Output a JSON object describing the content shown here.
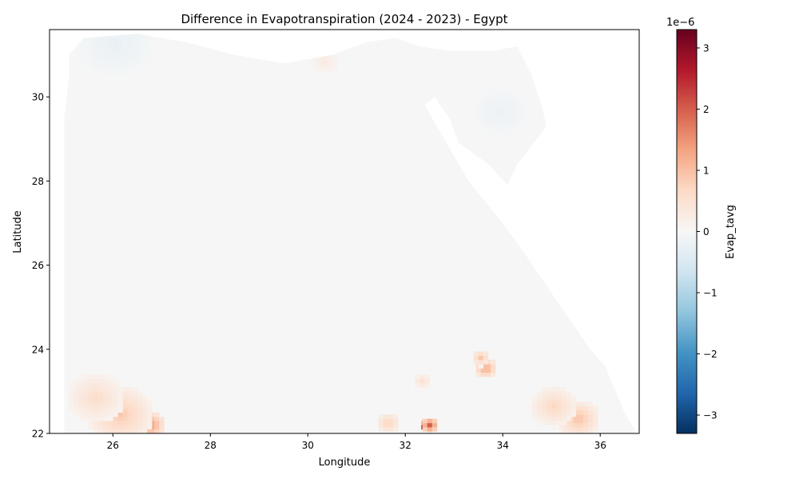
{
  "chart_data": {
    "type": "heatmap",
    "title": "Difference in Evapotranspiration (2024 - 2023) - Egypt",
    "xlabel": "Longitude",
    "ylabel": "Latitude",
    "xlim": [
      24.7,
      36.8
    ],
    "ylim": [
      22.0,
      31.6
    ],
    "x_ticks": [
      26,
      28,
      30,
      32,
      34,
      36
    ],
    "y_ticks": [
      22,
      24,
      26,
      28,
      30
    ],
    "colorbar": {
      "label": "Evap_tavg",
      "multiplier": "1e−6",
      "range": [
        -3.3e-06,
        3.3e-06
      ],
      "ticks": [
        -3,
        -2,
        -1,
        0,
        1,
        2,
        3
      ],
      "tick_labels": [
        "−3",
        "−2",
        "−1",
        "0",
        "1",
        "2",
        "3"
      ],
      "colormap": "RdBu_r",
      "stops": [
        "#053061",
        "#2166ac",
        "#4393c3",
        "#92c5de",
        "#d1e5f0",
        "#f7f7f7",
        "#fddbc7",
        "#f4a582",
        "#d6604d",
        "#b2182b",
        "#67001f"
      ]
    },
    "region_outline_lonlat": [
      [
        25.0,
        22.0
      ],
      [
        25.0,
        29.5
      ],
      [
        25.1,
        30.5
      ],
      [
        25.1,
        31.0
      ],
      [
        25.4,
        31.4
      ],
      [
        26.5,
        31.5
      ],
      [
        27.5,
        31.3
      ],
      [
        28.5,
        31.0
      ],
      [
        29.5,
        30.8
      ],
      [
        30.5,
        31.0
      ],
      [
        31.2,
        31.3
      ],
      [
        31.8,
        31.4
      ],
      [
        32.3,
        31.2
      ],
      [
        32.9,
        31.1
      ],
      [
        33.8,
        31.1
      ],
      [
        34.3,
        31.2
      ],
      [
        34.6,
        30.5
      ],
      [
        34.8,
        29.8
      ],
      [
        34.9,
        29.3
      ],
      [
        34.7,
        29.0
      ],
      [
        34.3,
        28.4
      ],
      [
        34.1,
        27.9
      ],
      [
        33.7,
        28.4
      ],
      [
        33.1,
        28.9
      ],
      [
        32.9,
        29.5
      ],
      [
        32.6,
        30.0
      ],
      [
        32.4,
        29.8
      ],
      [
        32.6,
        29.4
      ],
      [
        32.9,
        28.8
      ],
      [
        33.3,
        28.0
      ],
      [
        34.0,
        27.0
      ],
      [
        34.5,
        26.2
      ],
      [
        35.2,
        25.0
      ],
      [
        35.8,
        24.0
      ],
      [
        36.1,
        23.6
      ],
      [
        36.5,
        22.5
      ],
      [
        36.7,
        22.1
      ],
      [
        36.7,
        22.0
      ]
    ],
    "hotspots": [
      {
        "lon": 32.35,
        "lat": 22.12,
        "value": 3.3e-06,
        "radius_deg": 0.12
      },
      {
        "lon": 32.45,
        "lat": 22.15,
        "value": 2e-06,
        "radius_deg": 0.2
      },
      {
        "lon": 26.7,
        "lat": 22.15,
        "value": 1.5e-06,
        "radius_deg": 0.35
      },
      {
        "lon": 26.1,
        "lat": 22.4,
        "value": 9e-07,
        "radius_deg": 0.7
      },
      {
        "lon": 25.6,
        "lat": 22.8,
        "value": 6e-07,
        "radius_deg": 0.6
      },
      {
        "lon": 33.6,
        "lat": 23.5,
        "value": 1.3e-06,
        "radius_deg": 0.25
      },
      {
        "lon": 33.5,
        "lat": 23.75,
        "value": 9e-07,
        "radius_deg": 0.2
      },
      {
        "lon": 35.5,
        "lat": 22.3,
        "value": 1e-06,
        "radius_deg": 0.45
      },
      {
        "lon": 35.0,
        "lat": 22.6,
        "value": 7e-07,
        "radius_deg": 0.5
      },
      {
        "lon": 31.6,
        "lat": 22.2,
        "value": 8e-07,
        "radius_deg": 0.25
      },
      {
        "lon": 32.3,
        "lat": 23.2,
        "value": 5e-07,
        "radius_deg": 0.2
      },
      {
        "lon": 30.3,
        "lat": 30.8,
        "value": 3e-07,
        "radius_deg": 0.3
      },
      {
        "lon": 26.0,
        "lat": 31.2,
        "value": -2.5e-07,
        "radius_deg": 0.8
      },
      {
        "lon": 33.9,
        "lat": 29.6,
        "value": -2e-07,
        "radius_deg": 0.6
      }
    ]
  }
}
